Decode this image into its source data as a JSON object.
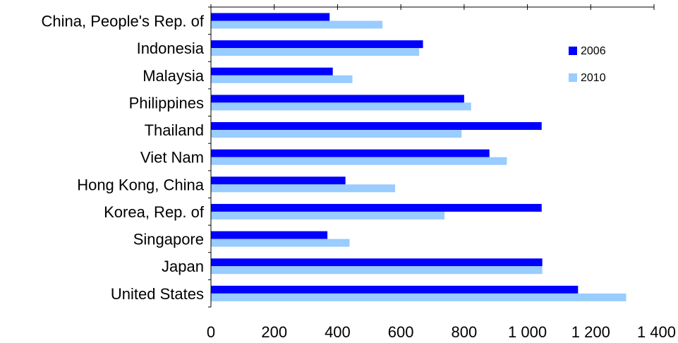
{
  "chart_data": {
    "type": "bar",
    "orientation": "horizontal",
    "title": "",
    "xlabel": "",
    "ylabel": "",
    "categories": [
      "China, People's Rep. of",
      "Indonesia",
      "Malaysia",
      "Philippines",
      "Thailand",
      "Viet Nam",
      "Hong Kong, China",
      "Korea, Rep. of",
      "Singapore",
      "Japan",
      "United States"
    ],
    "series": [
      {
        "name": "2006",
        "color": "#0000ff",
        "values": [
          375,
          670,
          385,
          800,
          1045,
          880,
          425,
          1045,
          368,
          1047,
          1160
        ]
      },
      {
        "name": "2010",
        "color": "#99ccff",
        "values": [
          542,
          658,
          447,
          822,
          792,
          935,
          582,
          738,
          438,
          1047,
          1312
        ]
      }
    ],
    "xlim": [
      0,
      1400
    ],
    "xticks": [
      0,
      200,
      400,
      600,
      800,
      1000,
      1200,
      1400
    ],
    "xtick_labels": [
      "0",
      "200",
      "400",
      "600",
      "800",
      "1 000",
      "1 200",
      "1 400"
    ],
    "grid": false,
    "legend_position": "top-right"
  }
}
